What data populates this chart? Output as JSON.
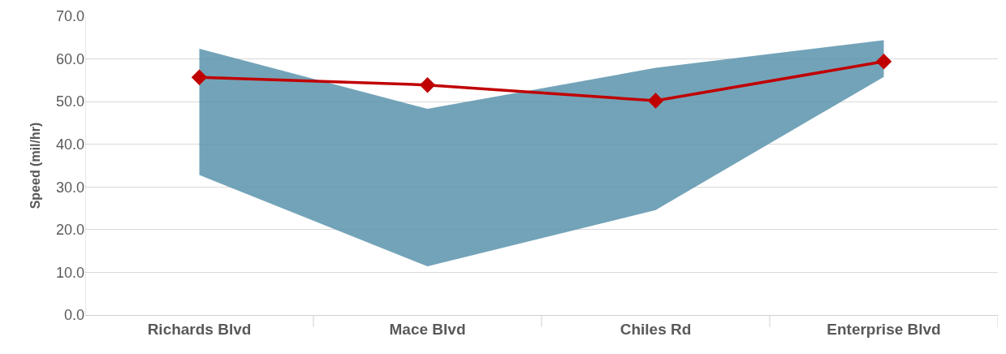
{
  "chart_data": {
    "type": "line",
    "ylabel": "Speed (mil/hr)",
    "categories": [
      "Richards Blvd",
      "Mace Blvd",
      "Chiles Rd",
      "Enterprise Blvd"
    ],
    "series": [
      {
        "color": "#c00000",
        "values": [
          55.7,
          53.9,
          50.2,
          59.4
        ],
        "lower": [
          32.8,
          11.4,
          24.6,
          55.8
        ],
        "upper": [
          62.4,
          48.3,
          57.9,
          64.4
        ]
      }
    ],
    "ylim": [
      0,
      70
    ],
    "yticks": [
      {
        "value": 0,
        "label": "0.0"
      },
      {
        "value": 10,
        "label": "10.0"
      },
      {
        "value": 20,
        "label": "20.0"
      },
      {
        "value": 30,
        "label": "30.0"
      },
      {
        "value": 40,
        "label": "40.0"
      },
      {
        "value": 50,
        "label": "50.0"
      },
      {
        "value": 60,
        "label": "60.0"
      },
      {
        "value": 70,
        "label": "70.0"
      }
    ],
    "grid": "y",
    "marker": "diamond",
    "line_style": "solid"
  }
}
